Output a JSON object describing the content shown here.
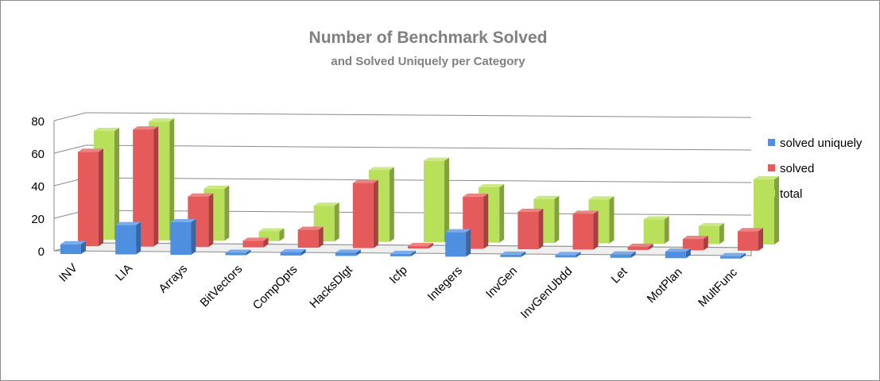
{
  "chart_data": {
    "type": "bar",
    "title": "Number of Benchmark Solved",
    "subtitle": "and Solved Uniquely per Category",
    "xlabel": "",
    "ylabel": "",
    "ylim": [
      0,
      80
    ],
    "yticks": [
      "0",
      "20",
      "40",
      "60",
      "80"
    ],
    "grid": true,
    "legend_position": "right",
    "categories": [
      "INV",
      "LIA",
      "Arrays",
      "BitVectors",
      "CompOpts",
      "HacksDlgt",
      "Icfp",
      "Integers",
      "InvGen",
      "InvGenUbdd",
      "Let",
      "MotPlan",
      "MultFunc"
    ],
    "series": [
      {
        "name": "solved uniquely",
        "color": "#4f8fe0",
        "values": [
          6,
          18,
          20,
          1,
          2,
          2,
          0,
          15,
          0,
          0,
          2,
          4,
          0
        ]
      },
      {
        "name": "solved",
        "color": "#e55a5a",
        "values": [
          58,
          72,
          31,
          4,
          11,
          40,
          1,
          32,
          23,
          22,
          2,
          7,
          12
        ]
      },
      {
        "name": "total",
        "color": "#b8e05a",
        "values": [
          67,
          73,
          32,
          6,
          22,
          44,
          50,
          34,
          27,
          27,
          15,
          11,
          40
        ]
      }
    ]
  }
}
